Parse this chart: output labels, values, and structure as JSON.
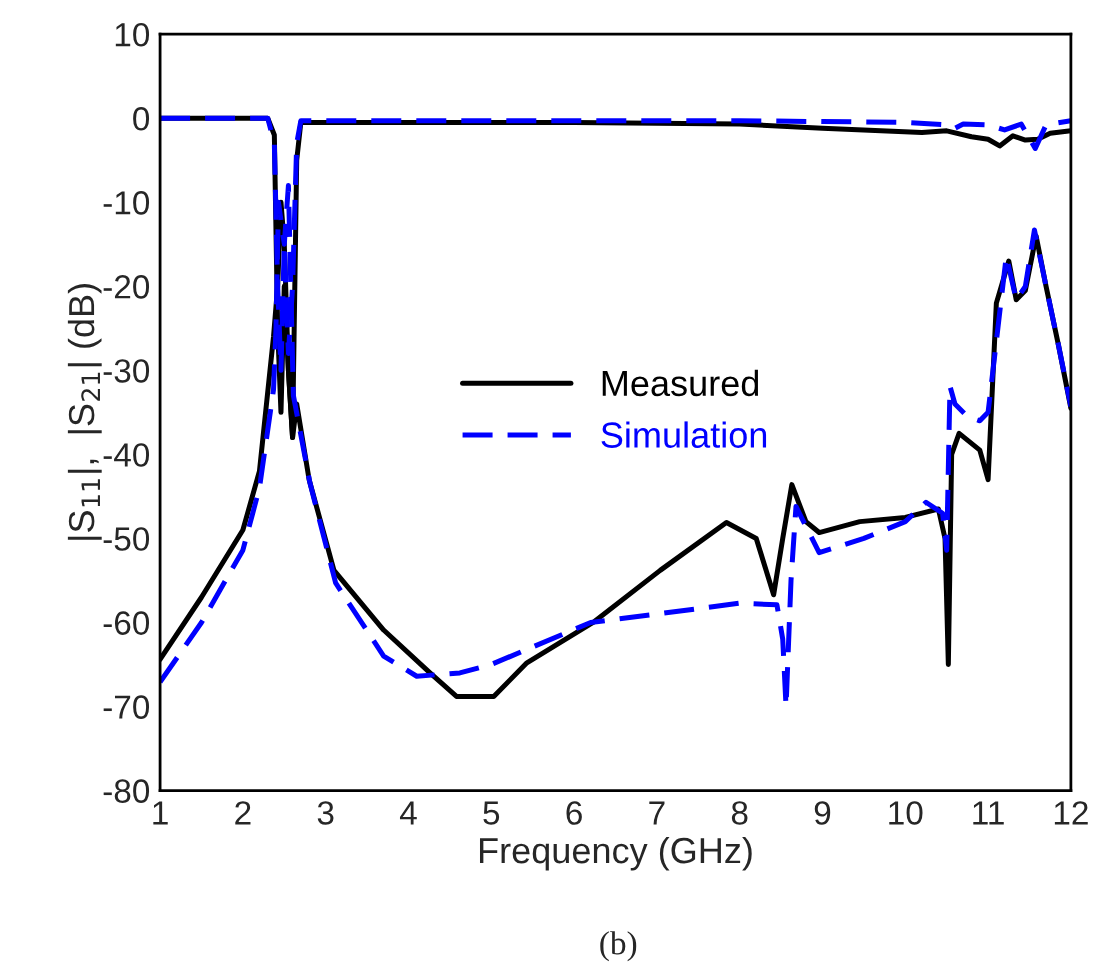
{
  "chart_data": {
    "type": "line",
    "xlabel": "Frequency (GHz)",
    "ylabel": "|S$_{11}$|,  |S$_{21}$| (dB)",
    "xlim": [
      1,
      12
    ],
    "ylim": [
      -80,
      10
    ],
    "xticks": [
      1,
      2,
      3,
      4,
      5,
      6,
      7,
      8,
      9,
      10,
      11,
      12
    ],
    "yticks": [
      -80,
      -70,
      -60,
      -50,
      -40,
      -30,
      -20,
      -10,
      0,
      10
    ],
    "grid": false,
    "legend": "center",
    "annotations": [
      "(b)"
    ],
    "series": [
      {
        "name": "Measured",
        "color": "#000000",
        "line_style": "solid",
        "x": [
          1,
          1.5,
          2,
          2.2,
          2.37,
          2.42,
          2.46,
          2.5,
          2.55,
          2.6,
          2.65,
          2.8,
          3.1,
          3.7,
          4.26,
          4.58,
          5.03,
          5.43,
          6.23,
          7.04,
          7.84,
          8.2,
          8.41,
          8.52,
          8.63,
          8.8,
          8.96,
          9.45,
          10,
          10.4,
          10.48,
          10.52,
          10.56,
          10.65,
          10.9,
          11.0,
          11.1,
          11.25,
          11.34,
          11.45,
          11.58,
          11.7,
          11.85,
          12
        ],
        "values": [
          -64.4,
          -57,
          -49,
          -42,
          -26,
          -20,
          -10,
          -15,
          -30,
          -38,
          -34,
          -43,
          -53.8,
          -60.9,
          -66,
          -68.8,
          -68.8,
          -64.8,
          -60,
          -53.8,
          -48.1,
          -50,
          -56.7,
          -50,
          -43.6,
          -48,
          -49.3,
          -48,
          -47.5,
          -46.5,
          -50,
          -65,
          -40,
          -37.5,
          -39.5,
          -43,
          -22,
          -17,
          -21.6,
          -20.5,
          -14,
          -20,
          -27,
          -34.5
        ]
      },
      {
        "color": "#000000",
        "line_style": "solid",
        "x": [
          1,
          2.3,
          2.38,
          2.42,
          2.46,
          2.5,
          2.55,
          2.6,
          2.65,
          2.7,
          4,
          6,
          8,
          9,
          10.2,
          10.5,
          10.8,
          11.0,
          11.14,
          11.3,
          11.45,
          11.6,
          11.75,
          12
        ],
        "values": [
          0,
          0,
          -2,
          -25,
          -35,
          -20,
          -30,
          -38,
          -5,
          -0.5,
          -0.5,
          -0.5,
          -0.7,
          -1.2,
          -1.7,
          -1.5,
          -2.2,
          -2.5,
          -3.3,
          -2.1,
          -2.6,
          -2.5,
          -1.8,
          -1.5
        ]
      },
      {
        "name": "Simulation",
        "color": "#0000ff",
        "line_style": "dashed",
        "x": [
          1,
          1.5,
          2,
          2.2,
          2.37,
          2.4,
          2.43,
          2.5,
          2.55,
          2.61,
          2.81,
          3.12,
          3.7,
          4.1,
          4.62,
          5,
          6.2,
          7,
          8,
          8.45,
          8.52,
          8.56,
          8.62,
          8.68,
          8.96,
          9.5,
          10,
          10.25,
          10.45,
          10.5,
          10.54,
          10.6,
          10.75,
          10.9,
          11.0,
          11.22,
          11.34,
          11.45,
          11.56,
          11.7,
          11.85,
          12
        ],
        "values": [
          -67.1,
          -60,
          -51.4,
          -44,
          -32.3,
          -25,
          -10,
          -15,
          -8,
          -33,
          -43.4,
          -55.3,
          -64,
          -66.4,
          -66,
          -65,
          -60,
          -59,
          -57.7,
          -57.9,
          -62,
          -70,
          -55,
          -46.2,
          -51.7,
          -50,
          -48,
          -45.7,
          -47,
          -51.4,
          -31.9,
          -34,
          -35.5,
          -36,
          -35,
          -16.4,
          -21.6,
          -20,
          -13.3,
          -20,
          -27,
          -34.3
        ]
      },
      {
        "color": "#0000ff",
        "line_style": "dashed",
        "x": [
          1,
          2.3,
          2.38,
          2.42,
          2.46,
          2.5,
          2.55,
          2.6,
          2.65,
          2.7,
          4,
          6,
          8,
          10,
          10.5,
          10.6,
          10.7,
          11.0,
          11.2,
          11.4,
          11.57,
          11.7,
          12
        ],
        "values": [
          0,
          0,
          -3,
          -20,
          -30,
          -15,
          -28,
          -20,
          -3,
          -0.3,
          -0.3,
          -0.3,
          -0.3,
          -0.5,
          -0.8,
          -1.2,
          -0.7,
          -0.8,
          -1.4,
          -0.7,
          -3.6,
          -0.8,
          -0.3
        ]
      }
    ]
  }
}
